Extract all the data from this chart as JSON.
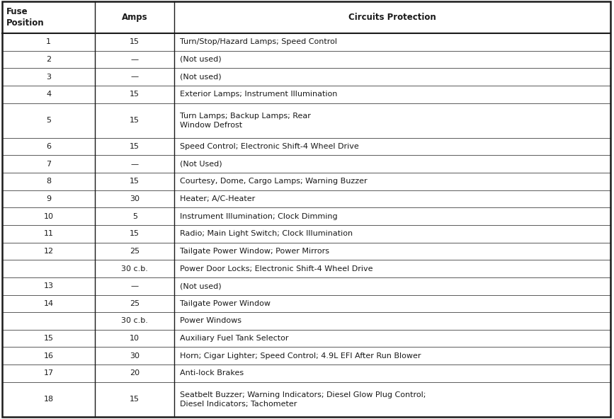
{
  "col_headers": [
    "Fuse\nPosition",
    "Amps",
    "Circuits Protection"
  ],
  "col_props": [
    0.153,
    0.13,
    0.717
  ],
  "rows": [
    {
      "pos": "1",
      "amps": "15",
      "circuit": "Turn/Stop/Hazard Lamps; Speed Control",
      "lines": 1
    },
    {
      "pos": "2",
      "amps": "—",
      "circuit": "(Not used)",
      "lines": 1
    },
    {
      "pos": "3",
      "amps": "—",
      "circuit": "(Not used)",
      "lines": 1
    },
    {
      "pos": "4",
      "amps": "15",
      "circuit": "Exterior Lamps; Instrument Illumination",
      "lines": 1
    },
    {
      "pos": "5",
      "amps": "15",
      "circuit": "Turn Lamps; Backup Lamps; Rear\nWindow Defrost",
      "lines": 2
    },
    {
      "pos": "6",
      "amps": "15",
      "circuit": "Speed Control; Electronic Shift-4 Wheel Drive",
      "lines": 1
    },
    {
      "pos": "7",
      "amps": "—",
      "circuit": "(Not Used)",
      "lines": 1
    },
    {
      "pos": "8",
      "amps": "15",
      "circuit": "Courtesy, Dome, Cargo Lamps; Warning Buzzer",
      "lines": 1
    },
    {
      "pos": "9",
      "amps": "30",
      "circuit": "Heater; A/C-Heater",
      "lines": 1
    },
    {
      "pos": "10",
      "amps": "5",
      "circuit": "Instrument Illumination; Clock Dimming",
      "lines": 1
    },
    {
      "pos": "11",
      "amps": "15",
      "circuit": "Radio; Main Light Switch; Clock Illumination",
      "lines": 1
    },
    {
      "pos": "12",
      "amps": "25",
      "circuit": "Tailgate Power Window; Power Mirrors",
      "lines": 1
    },
    {
      "pos": "",
      "amps": "30 c.b.",
      "circuit": "Power Door Locks; Electronic Shift-4 Wheel Drive",
      "lines": 1
    },
    {
      "pos": "13",
      "amps": "—",
      "circuit": "(Not used)",
      "lines": 1
    },
    {
      "pos": "14",
      "amps": "25",
      "circuit": "Tailgate Power Window",
      "lines": 1
    },
    {
      "pos": "",
      "amps": "30 c.b.",
      "circuit": "Power Windows",
      "lines": 1
    },
    {
      "pos": "15",
      "amps": "10",
      "circuit": "Auxiliary Fuel Tank Selector",
      "lines": 1
    },
    {
      "pos": "16",
      "amps": "30",
      "circuit": "Horn; Cigar Lighter; Speed Control; 4.9L EFI After Run Blower",
      "lines": 1
    },
    {
      "pos": "17",
      "amps": "20",
      "circuit": "Anti-lock Brakes",
      "lines": 1
    },
    {
      "pos": "18",
      "amps": "15",
      "circuit": "Seatbelt Buzzer; Warning Indicators; Diesel Glow Plug Control;\nDiesel Indicators; Tachometer",
      "lines": 2
    }
  ],
  "bg_color": "#ffffff",
  "text_color": "#1a1a1a",
  "line_color": "#1a1a1a",
  "header_font_size": 8.5,
  "body_font_size": 8.0,
  "header_lines": 2
}
